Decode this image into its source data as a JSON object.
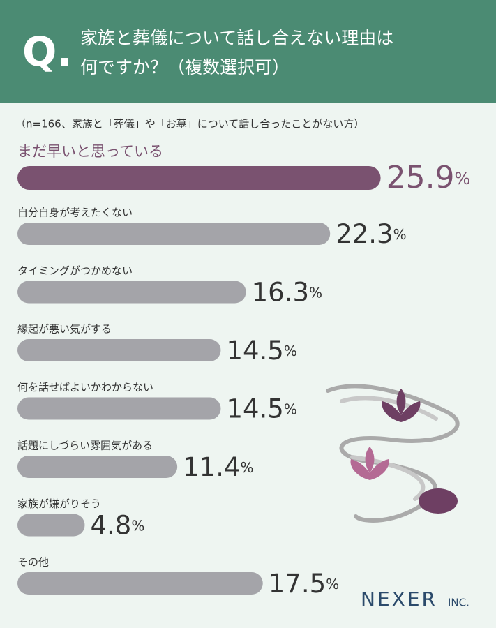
{
  "chart_data": {
    "type": "bar",
    "q_mark": "Q.",
    "title": [
      "家族と葬儀について話し合えない理由は",
      "何ですか？（複数選択可）"
    ],
    "note": "（n=166、家族と「葬儀」や「お墓」について話し合ったことがない方）",
    "categories": [
      "まだ早いと思っている",
      "自分自身が考えたくない",
      "タイミングがつかめない",
      "縁起が悪い気がする",
      "何を話せばよいかわからない",
      "話題にしづらい雰囲気がある",
      "家族が嫌がりそう",
      "その他"
    ],
    "values": [
      25.9,
      22.3,
      16.3,
      14.5,
      14.5,
      11.4,
      4.8,
      17.5
    ],
    "unit": "%",
    "colors": [
      "#7a5270",
      "#a4a4a9",
      "#a4a4a9",
      "#a4a4a9",
      "#a4a4a9",
      "#a4a4a9",
      "#a4a4a9",
      "#a4a4a9"
    ],
    "logo": "NEXER",
    "logo_suffix": "INC."
  }
}
